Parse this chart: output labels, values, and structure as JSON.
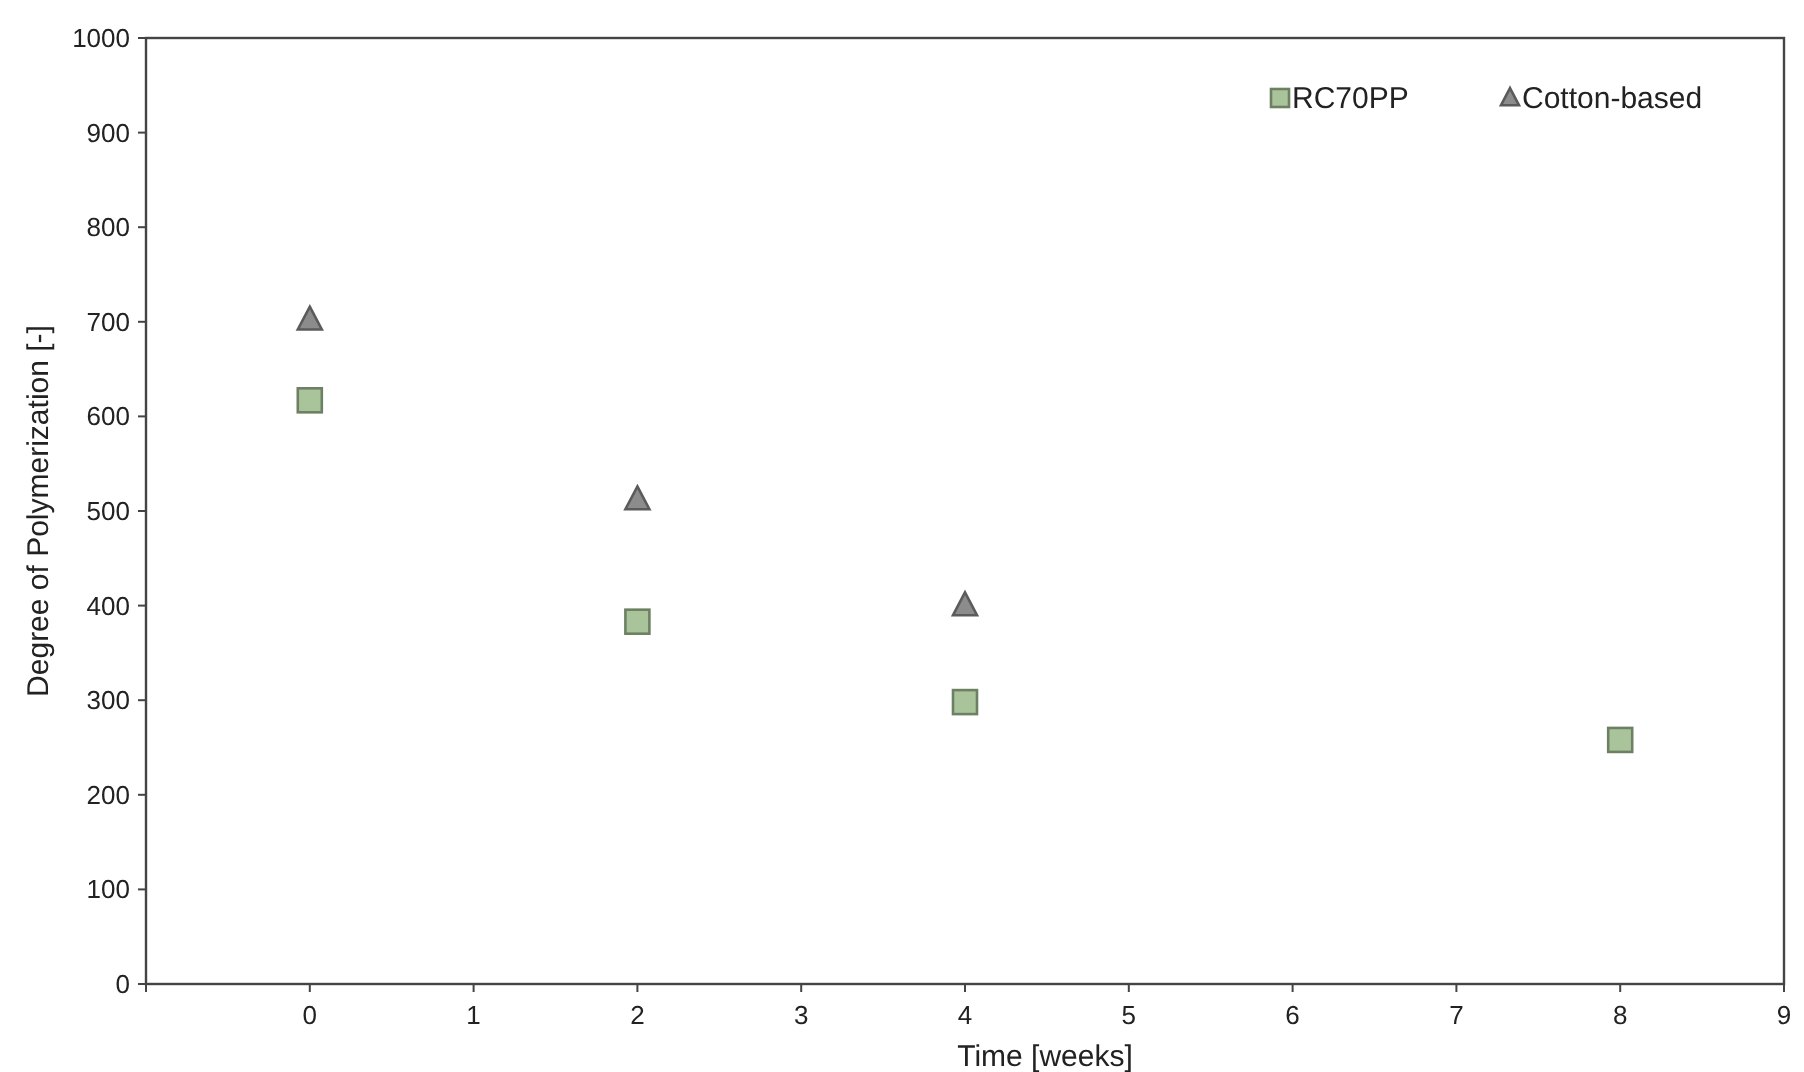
{
  "chart_data": {
    "type": "scatter",
    "xlabel": "Time [weeks]",
    "ylabel": "Degree of Polymerization [-]",
    "xlim": [
      -1,
      9
    ],
    "xticks": [
      {
        "value": -1,
        "label": null
      },
      0,
      1,
      2,
      3,
      4,
      5,
      6,
      7,
      8,
      9
    ],
    "ylim": [
      0,
      1000
    ],
    "yticks": [
      0,
      100,
      200,
      300,
      400,
      500,
      600,
      700,
      800,
      900,
      1000
    ],
    "grid": false,
    "legend": "top right",
    "series": [
      {
        "name": "RC70PP",
        "color": "#a9c49a",
        "marker": "square",
        "x": [
          0,
          2,
          4,
          8
        ],
        "values": [
          617,
          383,
          298,
          258
        ]
      },
      {
        "name": "Cotton-based",
        "color": "#8c8c8c",
        "marker": "triangle",
        "x": [
          0,
          2,
          4
        ],
        "values": [
          702,
          512,
          400
        ]
      }
    ]
  }
}
